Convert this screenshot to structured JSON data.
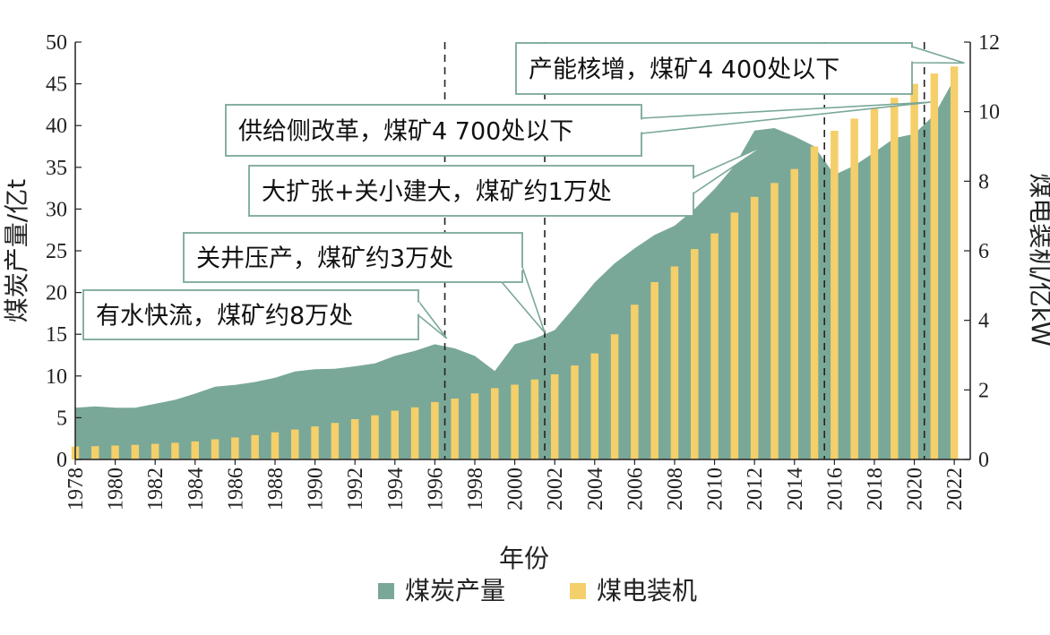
{
  "colors": {
    "production": "#7aa898",
    "capacity": "#f5cf6a"
  },
  "chart_data": {
    "type": "area",
    "xlabel": "年份",
    "ylabel_left": "煤炭产量/亿t",
    "ylabel_right": "煤电装机/亿kW",
    "ylim_left": [
      0,
      50
    ],
    "ylim_right": [
      0,
      12
    ],
    "yticks_left": [
      0,
      5,
      10,
      15,
      20,
      25,
      30,
      35,
      40,
      45,
      50
    ],
    "yticks_right": [
      0,
      2,
      4,
      6,
      8,
      10,
      12
    ],
    "years": [
      1978,
      1979,
      1980,
      1981,
      1982,
      1983,
      1984,
      1985,
      1986,
      1987,
      1988,
      1989,
      1990,
      1991,
      1992,
      1993,
      1994,
      1995,
      1996,
      1997,
      1998,
      1999,
      2000,
      2001,
      2002,
      2003,
      2004,
      2005,
      2006,
      2007,
      2008,
      2009,
      2010,
      2011,
      2012,
      2013,
      2014,
      2015,
      2016,
      2017,
      2018,
      2019,
      2020,
      2021,
      2022
    ],
    "xtick_labels": [
      "1978",
      "1980",
      "1982",
      "1984",
      "1986",
      "1988",
      "1990",
      "1992",
      "1994",
      "1996",
      "1998",
      "2000",
      "2002",
      "2004",
      "2006",
      "2008",
      "2010",
      "2012",
      "2014",
      "2016",
      "2018",
      "2020",
      "2022"
    ],
    "series": [
      {
        "name": "煤炭产量",
        "type": "area",
        "axis": "left",
        "values": [
          6.2,
          6.35,
          6.2,
          6.2,
          6.66,
          7.15,
          7.89,
          8.72,
          8.94,
          9.28,
          9.8,
          10.54,
          10.8,
          10.87,
          11.16,
          11.5,
          12.4,
          13.0,
          13.8,
          13.3,
          12.4,
          10.6,
          13.8,
          14.5,
          15.5,
          18.3,
          21.2,
          23.5,
          25.3,
          26.9,
          28.0,
          30.0,
          32.4,
          35.2,
          39.4,
          39.7,
          38.7,
          37.5,
          34.1,
          35.2,
          36.8,
          38.5,
          39.0,
          41.3,
          45.6
        ]
      },
      {
        "name": "煤电装机",
        "type": "bar",
        "axis": "right",
        "values": [
          0.37,
          0.38,
          0.4,
          0.42,
          0.45,
          0.48,
          0.52,
          0.58,
          0.63,
          0.7,
          0.78,
          0.86,
          0.95,
          1.05,
          1.16,
          1.27,
          1.4,
          1.5,
          1.65,
          1.75,
          1.9,
          2.05,
          2.15,
          2.3,
          2.45,
          2.7,
          3.05,
          3.6,
          4.45,
          5.1,
          5.55,
          6.05,
          6.5,
          7.1,
          7.55,
          7.95,
          8.35,
          9.0,
          9.45,
          9.8,
          10.1,
          10.4,
          10.8,
          11.1,
          11.3
        ]
      }
    ],
    "vlines": [
      1996.5,
      2001.5,
      2015.5,
      2020.5
    ],
    "annotations": [
      "有水快流，煤矿约8万处",
      "关井压产，煤矿约3万处",
      "大扩张+关小建大，煤矿约1万处",
      "供给侧改革，煤矿4 700处以下",
      "产能核增，煤矿4 400处以下"
    ],
    "legend": [
      "煤炭产量",
      "煤电装机"
    ],
    "legend_position": "bottom"
  }
}
